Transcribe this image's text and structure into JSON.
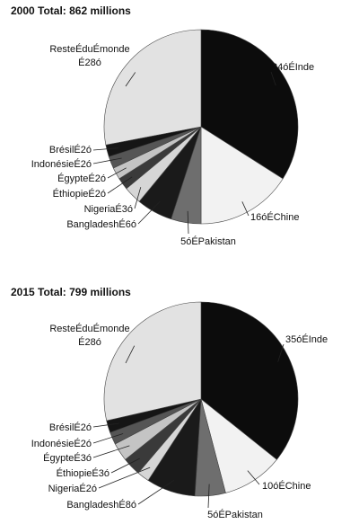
{
  "chart_data": [
    {
      "type": "pie",
      "title": "2000 Total: 862 millions",
      "slices": [
        {
          "label": "34óÉInde",
          "value": 34,
          "color": "#0c0c0c"
        },
        {
          "label": "16óÉChine",
          "value": 16,
          "color": "#f2f2f2"
        },
        {
          "label": "5óÉPakistan",
          "value": 5,
          "color": "#6e6e6e"
        },
        {
          "label": "BangladeshÉ6ó",
          "value": 6,
          "color": "#1a1a1a"
        },
        {
          "label": "NigeriaÉ3ó",
          "value": 3,
          "color": "#d6d6d6"
        },
        {
          "label": "ÉthiopieÉ2ó",
          "value": 2,
          "color": "#3a3a3a"
        },
        {
          "label": "ÉgypteÉ2ó",
          "value": 2,
          "color": "#c4c4c4"
        },
        {
          "label": "IndonésieÉ2ó",
          "value": 2,
          "color": "#555555"
        },
        {
          "label": "BrésilÉ2ó",
          "value": 2,
          "color": "#151515"
        },
        {
          "label": "ResteÉduÉmonde",
          "label2": "É28ó",
          "value": 28,
          "color": "#e2e2e2"
        }
      ]
    },
    {
      "type": "pie",
      "title": "2015 Total: 799 millions",
      "slices": [
        {
          "label": "35óÉInde",
          "value": 35,
          "color": "#0c0c0c"
        },
        {
          "label": "10óÉChine",
          "value": 10,
          "color": "#f2f2f2"
        },
        {
          "label": "5óÉPakistan",
          "value": 5,
          "color": "#6e6e6e"
        },
        {
          "label": "BangladeshÉ8ó",
          "value": 8,
          "color": "#1a1a1a"
        },
        {
          "label": "NigeriaÉ2ó",
          "value": 2,
          "color": "#d6d6d6"
        },
        {
          "label": "ÉthiopieÉ3ó",
          "value": 3,
          "color": "#3a3a3a"
        },
        {
          "label": "ÉgypteÉ3ó",
          "value": 3,
          "color": "#c4c4c4"
        },
        {
          "label": "IndonésieÉ2ó",
          "value": 2,
          "color": "#555555"
        },
        {
          "label": "BrésilÉ2ó",
          "value": 2,
          "color": "#151515"
        },
        {
          "label": "ResteÉduÉmonde",
          "label2": "É28ó",
          "value": 28,
          "color": "#e2e2e2"
        }
      ]
    }
  ]
}
